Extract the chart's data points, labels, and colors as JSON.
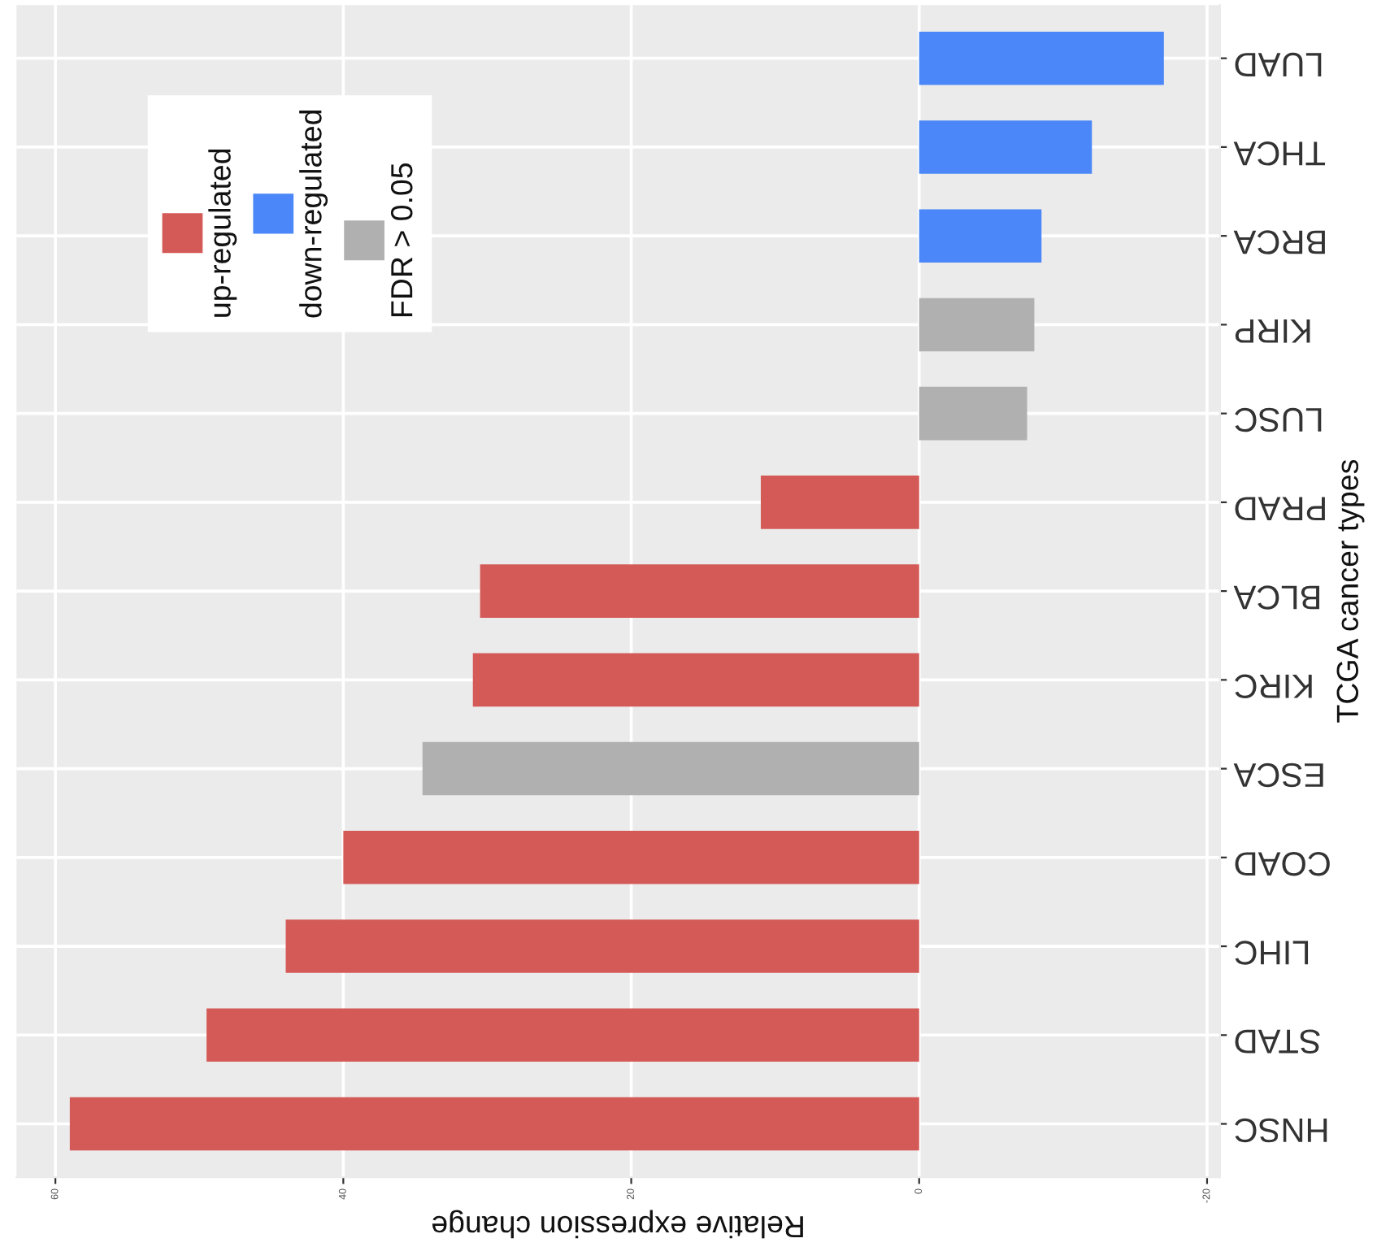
{
  "chart_data": {
    "type": "bar",
    "orientation": "horizontal",
    "xlabel": "Relative expression change",
    "ylabel": "TCGA cancer types",
    "categories": [
      "LUAD",
      "THCA",
      "BRCA",
      "KIRP",
      "LUSC",
      "PRAD",
      "BLCA",
      "KIRC",
      "ESCA",
      "COAD",
      "LIHC",
      "STAD",
      "HNSC"
    ],
    "series": [
      {
        "name": "up-regulated",
        "color": "#d45a57",
        "values": [
          null,
          null,
          null,
          null,
          null,
          11,
          30.5,
          31,
          null,
          40,
          44,
          49.5,
          59
        ]
      },
      {
        "name": "down-regulated",
        "color": "#4b87f8",
        "values": [
          -17,
          -12,
          -8.5,
          null,
          null,
          null,
          null,
          null,
          null,
          null,
          null,
          null,
          null
        ]
      },
      {
        "name": "FDR > 0.05",
        "color": "#b0b0b0",
        "values": [
          null,
          null,
          null,
          -8,
          -7.5,
          null,
          null,
          null,
          34.5,
          null,
          null,
          null,
          null
        ]
      }
    ],
    "xlim": [
      62.7,
      -20.9
    ],
    "xticks": [
      60,
      40,
      20,
      0,
      -20
    ],
    "grid": true,
    "legend": "top left"
  }
}
